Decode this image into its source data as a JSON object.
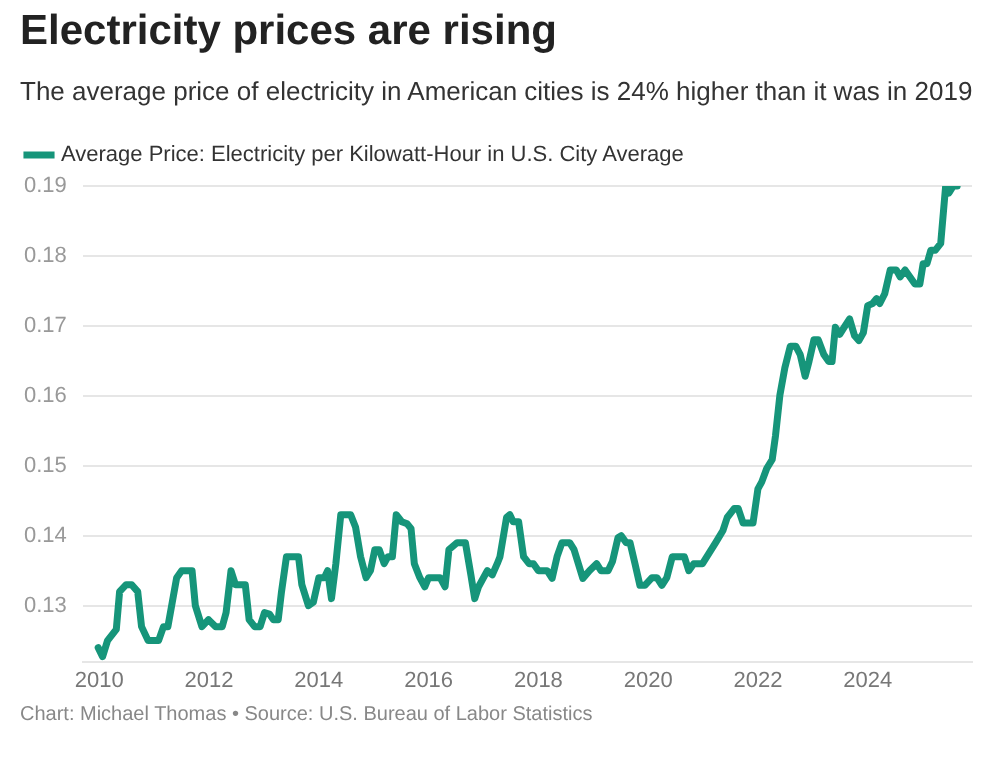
{
  "chart_data": {
    "type": "line",
    "title": "Electricity prices are rising",
    "subtitle": "The average price of electricity in American cities is 24% higher than it was in 2019",
    "annotations": [
      "Chart: Michael Thomas • Source: U.S. Bureau of Labor Statistics"
    ],
    "x": [
      2009.98,
      2010.06,
      2010.15,
      2010.31,
      2010.37,
      2010.49,
      2010.59,
      2010.7,
      2010.77,
      2010.89,
      2011.08,
      2011.17,
      2011.25,
      2011.41,
      2011.5,
      2011.69,
      2011.75,
      2011.87,
      2011.99,
      2012.12,
      2012.24,
      2012.31,
      2012.4,
      2012.48,
      2012.66,
      2012.73,
      2012.83,
      2012.93,
      2013.01,
      2013.1,
      2013.17,
      2013.26,
      2013.32,
      2013.41,
      2013.63,
      2013.69,
      2013.81,
      2013.9,
      2014.0,
      2014.1,
      2014.16,
      2014.23,
      2014.31,
      2014.4,
      2014.58,
      2014.67,
      2014.76,
      2014.86,
      2014.94,
      2015.02,
      2015.1,
      2015.19,
      2015.26,
      2015.34,
      2015.41,
      2015.51,
      2015.61,
      2015.68,
      2015.74,
      2015.84,
      2015.93,
      2016.0,
      2016.21,
      2016.3,
      2016.37,
      2016.52,
      2016.67,
      2016.77,
      2016.84,
      2016.91,
      2017.07,
      2017.16,
      2017.25,
      2017.3,
      2017.42,
      2017.48,
      2017.54,
      2017.64,
      2017.73,
      2017.83,
      2017.91,
      2018.0,
      2018.16,
      2018.25,
      2018.34,
      2018.43,
      2018.57,
      2018.65,
      2018.81,
      2018.93,
      2019.06,
      2019.14,
      2019.27,
      2019.35,
      2019.45,
      2019.51,
      2019.6,
      2019.67,
      2019.76,
      2019.85,
      2019.94,
      2020.07,
      2020.16,
      2020.25,
      2020.34,
      2020.44,
      2020.66,
      2020.74,
      2020.83,
      2020.99,
      2021.11,
      2021.23,
      2021.36,
      2021.44,
      2021.57,
      2021.64,
      2021.73,
      2021.91,
      2022.0,
      2022.07,
      2022.16,
      2022.26,
      2022.32,
      2022.4,
      2022.49,
      2022.59,
      2022.69,
      2022.77,
      2022.86,
      2022.93,
      2023.02,
      2023.1,
      2023.2,
      2023.29,
      2023.35,
      2023.41,
      2023.49,
      2023.57,
      2023.67,
      2023.76,
      2023.84,
      2023.92,
      2024.0,
      2024.09,
      2024.16,
      2024.22,
      2024.31,
      2024.41,
      2024.52,
      2024.59,
      2024.68,
      2024.77,
      2024.86,
      2024.95,
      2025.01,
      2025.08,
      2025.15,
      2025.23,
      2025.33,
      2025.42,
      2025.48,
      2025.56,
      2025.63
    ],
    "series": [
      {
        "name": "Average Price: Electricity per Kilowatt-Hour in U.S. City Average",
        "color": "#16957a",
        "values": [
          0.124,
          0.1227,
          0.125,
          0.1266,
          0.132,
          0.133,
          0.133,
          0.132,
          0.127,
          0.125,
          0.125,
          0.127,
          0.127,
          0.134,
          0.135,
          0.135,
          0.13,
          0.127,
          0.128,
          0.127,
          0.127,
          0.129,
          0.135,
          0.133,
          0.133,
          0.128,
          0.127,
          0.127,
          0.129,
          0.1288,
          0.128,
          0.128,
          0.132,
          0.137,
          0.137,
          0.133,
          0.13,
          0.1305,
          0.134,
          0.134,
          0.135,
          0.131,
          0.136,
          0.143,
          0.143,
          0.1412,
          0.137,
          0.134,
          0.135,
          0.138,
          0.138,
          0.136,
          0.137,
          0.137,
          0.143,
          0.142,
          0.1417,
          0.141,
          0.136,
          0.134,
          0.1327,
          0.134,
          0.134,
          0.1327,
          0.138,
          0.139,
          0.139,
          0.1344,
          0.131,
          0.1327,
          0.135,
          0.1344,
          0.136,
          0.137,
          0.1426,
          0.143,
          0.142,
          0.142,
          0.137,
          0.136,
          0.136,
          0.135,
          0.135,
          0.1339,
          0.137,
          0.139,
          0.139,
          0.138,
          0.1339,
          0.135,
          0.136,
          0.135,
          0.135,
          0.1363,
          0.1397,
          0.14,
          0.139,
          0.139,
          0.136,
          0.1329,
          0.1329,
          0.134,
          0.134,
          0.1329,
          0.134,
          0.137,
          0.137,
          0.135,
          0.136,
          0.136,
          0.1375,
          0.139,
          0.1407,
          0.1426,
          0.1439,
          0.1439,
          0.1418,
          0.1418,
          0.1467,
          0.1477,
          0.1496,
          0.1509,
          0.1543,
          0.1601,
          0.164,
          0.1671,
          0.1671,
          0.1659,
          0.1628,
          0.1649,
          0.168,
          0.168,
          0.1659,
          0.1649,
          0.1649,
          0.1698,
          0.1688,
          0.1698,
          0.171,
          0.1686,
          0.1679,
          0.169,
          0.1729,
          0.1732,
          0.1739,
          0.1732,
          0.1746,
          0.178,
          0.178,
          0.177,
          0.178,
          0.177,
          0.176,
          0.176,
          0.1789,
          0.1789,
          0.1808,
          0.1808,
          0.1818,
          0.19,
          0.189,
          0.19,
          0.19
        ]
      }
    ],
    "xlim": [
      2009.7,
      2025.9
    ],
    "xticks": [
      2010,
      2012,
      2014,
      2016,
      2018,
      2020,
      2022,
      2024
    ],
    "ylim": [
      0.122,
      0.19
    ],
    "yticks": [
      0.13,
      0.14,
      0.15,
      0.16,
      0.17,
      0.18,
      0.19
    ],
    "grid": "y",
    "legend": "top left",
    "marker": "none",
    "line_style": "solid"
  }
}
